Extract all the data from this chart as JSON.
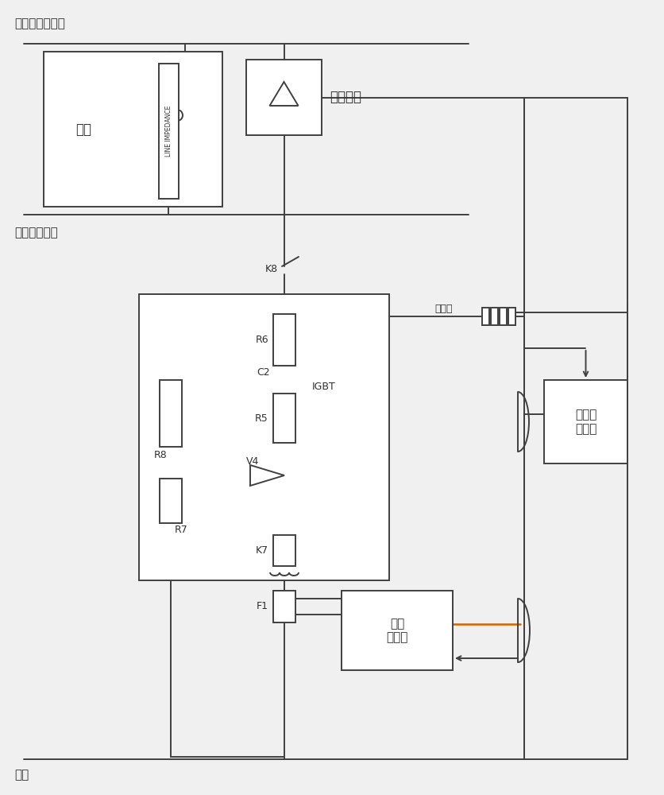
{
  "bg_color": "#f0f0f0",
  "line_color": "#404040",
  "text_color": "#303030",
  "title_top": "接触网（正极）",
  "title_rail": "钢轨（负极）",
  "title_ground": "大地",
  "label_train": "列车",
  "label_dc": "直流设备",
  "label_li": "LINE IMPEDANCE",
  "label_k8": "K8",
  "label_r6": "R6",
  "label_r5": "R5",
  "label_c2": "C2",
  "label_r8": "R8",
  "label_r7": "R7",
  "label_v4": "V4",
  "label_k7": "K7",
  "label_f1": "F1",
  "label_igbt": "IGBT",
  "label_shunt": "分流器",
  "label_small_ctrl": "小型\n控制器",
  "label_frame_ctrl": "框架监\n控系统",
  "orange_color": "#cc6600"
}
